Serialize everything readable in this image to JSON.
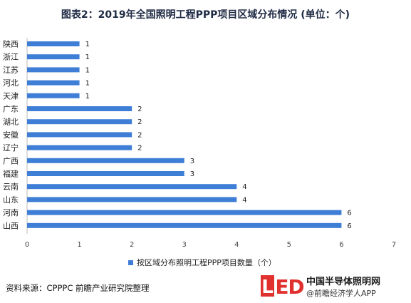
{
  "title": "图表2：2019年全国照明工程PPP项目区域分布情况 (单位：个)",
  "chart_data": {
    "type": "bar",
    "orientation": "horizontal",
    "categories": [
      "陕西",
      "浙江",
      "江苏",
      "河北",
      "天津",
      "广东",
      "湖北",
      "安徽",
      "辽宁",
      "广西",
      "福建",
      "云南",
      "山东",
      "河南",
      "山西"
    ],
    "series": [
      {
        "name": "按区域分布照明工程PPP项目数量（个）",
        "values": [
          1,
          1,
          1,
          1,
          1,
          2,
          2,
          2,
          2,
          3,
          3,
          4,
          4,
          6,
          6
        ]
      }
    ],
    "xticks": [
      0,
      1,
      2,
      3,
      4,
      5,
      6,
      7
    ],
    "xlim": [
      0,
      7
    ],
    "grid": false,
    "legend_position": "bottom",
    "bar_color": "#3F7ED6"
  },
  "legend": {
    "label": "按区域分布照明工程PPP项目数量（个）"
  },
  "source": "资料来源：CPPPC 前瞻产业研究院整理",
  "brand": {
    "logo_letters": [
      "L",
      "E",
      "D"
    ],
    "name": "中国半导体照明网",
    "sub": "@前瞻经济学人APP"
  }
}
